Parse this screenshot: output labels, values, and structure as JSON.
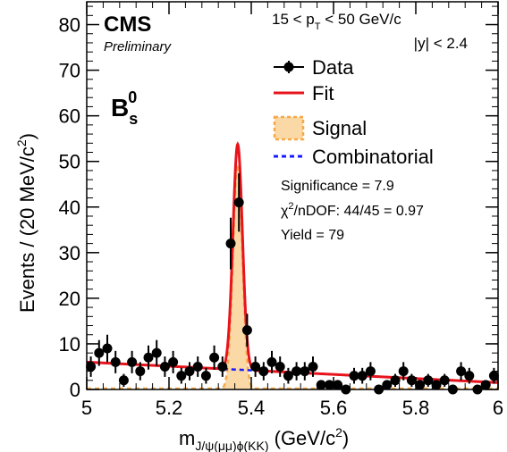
{
  "chart_data": {
    "type": "scatter",
    "title": "",
    "experiment": "CMS",
    "status": "Preliminary",
    "particle": {
      "base": "B",
      "sub": "s",
      "sup": "0"
    },
    "kinematics": {
      "pt_left": "15 < p",
      "pt_sub": "T",
      "pt_right": " < 50 GeV/c",
      "rapidity": "|y| < 2.4"
    },
    "xlabel": {
      "base": "m",
      "sub": "J/ψ(μμ)ϕ(KK)",
      "unit_pre": " (GeV/c",
      "unit_sup": "2",
      "unit_post": ")"
    },
    "ylabel": {
      "text": "Events / (20 MeV/c",
      "sup": "2",
      "post": ")"
    },
    "xlim": [
      5.0,
      6.0
    ],
    "ylim": [
      0,
      85
    ],
    "x_ticks": [
      5.0,
      5.2,
      5.4,
      5.6,
      5.8,
      6.0
    ],
    "x_tick_labels": [
      "5",
      "5.2",
      "5.4",
      "5.6",
      "5.8",
      "6"
    ],
    "y_ticks": [
      0,
      10,
      20,
      30,
      40,
      50,
      60,
      70,
      80
    ],
    "y_tick_labels": [
      "0",
      "10",
      "20",
      "30",
      "40",
      "50",
      "60",
      "70",
      "80"
    ],
    "legend": {
      "position": "top-right",
      "entries": [
        {
          "label": "Data",
          "style": "marker"
        },
        {
          "label": "Fit",
          "style": "line",
          "color": "#e8141c"
        },
        {
          "label": "Signal",
          "style": "fill",
          "color": "#f6a94a"
        },
        {
          "label": "Combinatorial",
          "style": "dashed",
          "color": "#1a1aff"
        }
      ]
    },
    "stats": {
      "significance": "Significance = 7.9",
      "chi2_pre": "χ",
      "chi2_sup": "2",
      "chi2_post": "/nDOF: 44/45 = 0.97",
      "yield": "Yield = 79"
    },
    "colors": {
      "fit": "#e8141c",
      "signal_line": "#f6a94a",
      "signal_fill": "#fbd9a6",
      "combinatorial": "#1a1aff",
      "data": "#000000"
    },
    "fit_model": {
      "mean": 5.367,
      "sigma": 0.0115,
      "signal_peak": 49.4,
      "bkg_at_5": 6.0,
      "bkg_slope": -4.5
    },
    "series": [
      {
        "x": [
          5.01,
          5.03,
          5.05,
          5.07,
          5.09,
          5.11,
          5.13,
          5.15,
          5.17,
          5.19,
          5.21,
          5.23,
          5.25,
          5.27,
          5.29,
          5.31,
          5.33,
          5.35,
          5.37,
          5.39,
          5.41,
          5.43,
          5.45,
          5.47,
          5.49,
          5.51,
          5.53,
          5.55,
          5.57,
          5.59,
          5.61,
          5.63,
          5.65,
          5.67,
          5.69,
          5.71,
          5.73,
          5.75,
          5.77,
          5.79,
          5.81,
          5.83,
          5.85,
          5.87,
          5.89,
          5.91,
          5.93,
          5.95,
          5.97,
          5.99
        ],
        "y": [
          5,
          8,
          9,
          6,
          2,
          6,
          4,
          7,
          8,
          5,
          6,
          3,
          4,
          5,
          3,
          7,
          5,
          32,
          41,
          13,
          5,
          4,
          6,
          5,
          3,
          4,
          4,
          5,
          1,
          1,
          1,
          0,
          3,
          3,
          4,
          0,
          1,
          2,
          4,
          2,
          1,
          2,
          1,
          2,
          0,
          4,
          3,
          0,
          1,
          3
        ]
      }
    ]
  }
}
